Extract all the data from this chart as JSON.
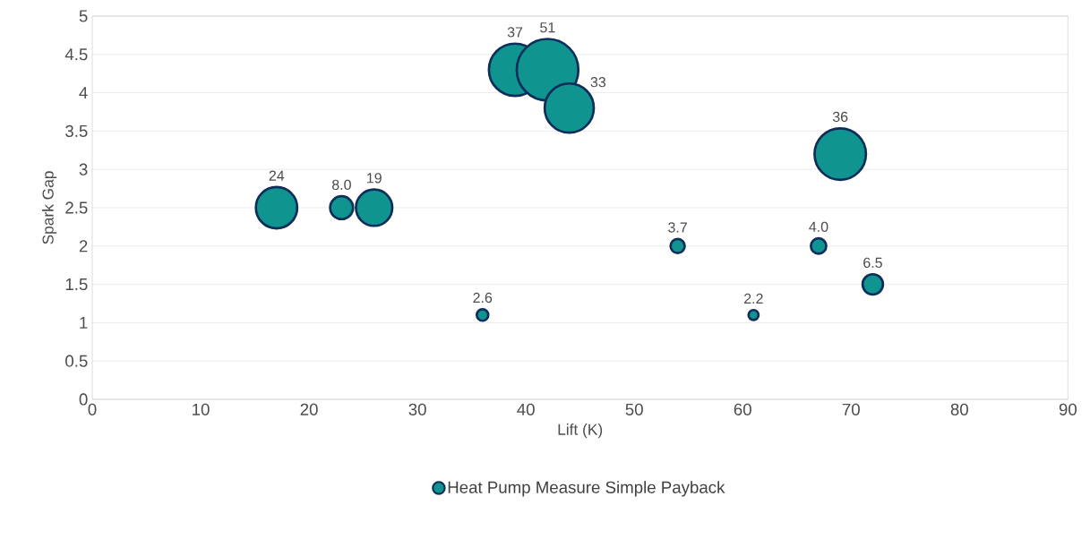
{
  "chart_data": {
    "type": "bubble",
    "xlabel": "Lift (K)",
    "ylabel": "Spark Gap",
    "x": [
      17,
      23,
      26,
      36,
      39,
      42,
      44,
      54,
      61,
      67,
      69,
      72
    ],
    "series": [
      {
        "name": "Heat Pump Measure Simple Payback",
        "color": "#10948f",
        "values": [
          2.5,
          2.5,
          2.5,
          1.1,
          4.3,
          4.3,
          3.8,
          2.0,
          1.1,
          2.0,
          3.2,
          1.5
        ],
        "sizes": [
          0.47,
          0.16,
          0.37,
          0.05,
          0.73,
          1,
          0.65,
          0.07,
          0.04,
          0.08,
          0.71,
          0.13
        ]
      }
    ],
    "annotations": [
      {
        "text": "24",
        "x": 17,
        "y": 2.5
      },
      {
        "text": "8.0",
        "x": 23,
        "y": 2.5
      },
      {
        "text": "19",
        "x": 26,
        "y": 2.5
      },
      {
        "text": "2.6",
        "x": 36,
        "y": 1.1
      },
      {
        "text": "37",
        "x": 39,
        "y": 4.3
      },
      {
        "text": "51",
        "x": 42,
        "y": 4.3
      },
      {
        "text": "33",
        "x": 44,
        "y": 3.8
      },
      {
        "text": "3.7",
        "x": 54,
        "y": 2.0
      },
      {
        "text": "2.2",
        "x": 61,
        "y": 1.1
      },
      {
        "text": "4.0",
        "x": 67,
        "y": 2.0
      },
      {
        "text": "36",
        "x": 69,
        "y": 3.2
      },
      {
        "text": "6.5",
        "x": 72,
        "y": 1.5
      }
    ],
    "xlim": [
      0,
      90
    ],
    "xticks": [
      0,
      10,
      20,
      30,
      40,
      50,
      60,
      70,
      80,
      90
    ],
    "ylim": [
      0,
      5
    ],
    "yticks": [
      0,
      0.5,
      1,
      1.5,
      2,
      2.5,
      3,
      3.5,
      4,
      4.5,
      5
    ],
    "grid": "y",
    "legend": "bottom"
  }
}
